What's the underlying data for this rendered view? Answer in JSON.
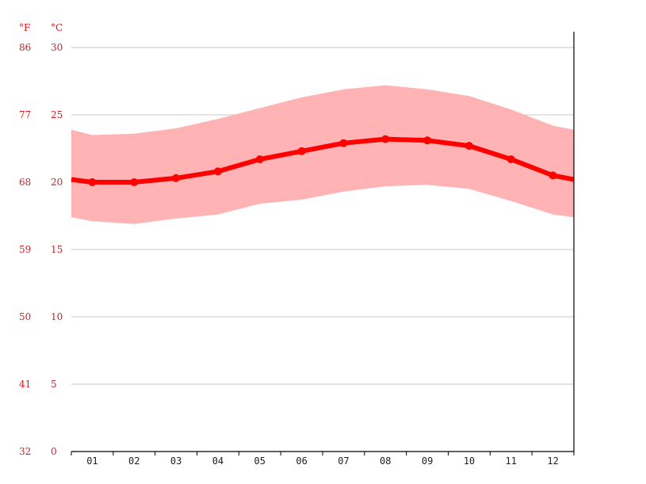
{
  "chart_data": {
    "type": "line",
    "title": "",
    "xlabel": "",
    "ylabel": "",
    "unit_f": "°F",
    "unit_c": "°C",
    "categories": [
      "01",
      "02",
      "03",
      "04",
      "05",
      "06",
      "07",
      "08",
      "09",
      "10",
      "11",
      "12"
    ],
    "y_ticks_c": [
      "0",
      "5",
      "10",
      "15",
      "20",
      "25",
      "30"
    ],
    "y_ticks_f": [
      "32",
      "41",
      "50",
      "59",
      "68",
      "77",
      "86"
    ],
    "ylim": [
      0,
      30
    ],
    "grid": true,
    "series": [
      {
        "role": "average",
        "values": [
          20.0,
          20.0,
          20.3,
          20.8,
          21.7,
          22.3,
          22.9,
          23.2,
          23.1,
          22.7,
          21.7,
          20.5
        ]
      },
      {
        "role": "max",
        "values": [
          23.5,
          23.6,
          24.0,
          24.7,
          25.5,
          26.3,
          26.9,
          27.2,
          26.9,
          26.4,
          25.4,
          24.2
        ]
      },
      {
        "role": "min",
        "values": [
          17.1,
          16.9,
          17.3,
          17.6,
          18.4,
          18.7,
          19.3,
          19.7,
          19.8,
          19.5,
          18.6,
          17.6
        ]
      }
    ],
    "edge_values": {
      "avg_start": 20.2,
      "avg_end": 20.2,
      "max_start": 23.9,
      "max_end": 23.9,
      "min_start": 17.4,
      "min_end": 17.4
    },
    "colors": {
      "line": "#ff0000",
      "band": "#ffb3b5",
      "labels": "#e8141d",
      "grid": "#c8c8c8",
      "axis": "#000000"
    }
  }
}
